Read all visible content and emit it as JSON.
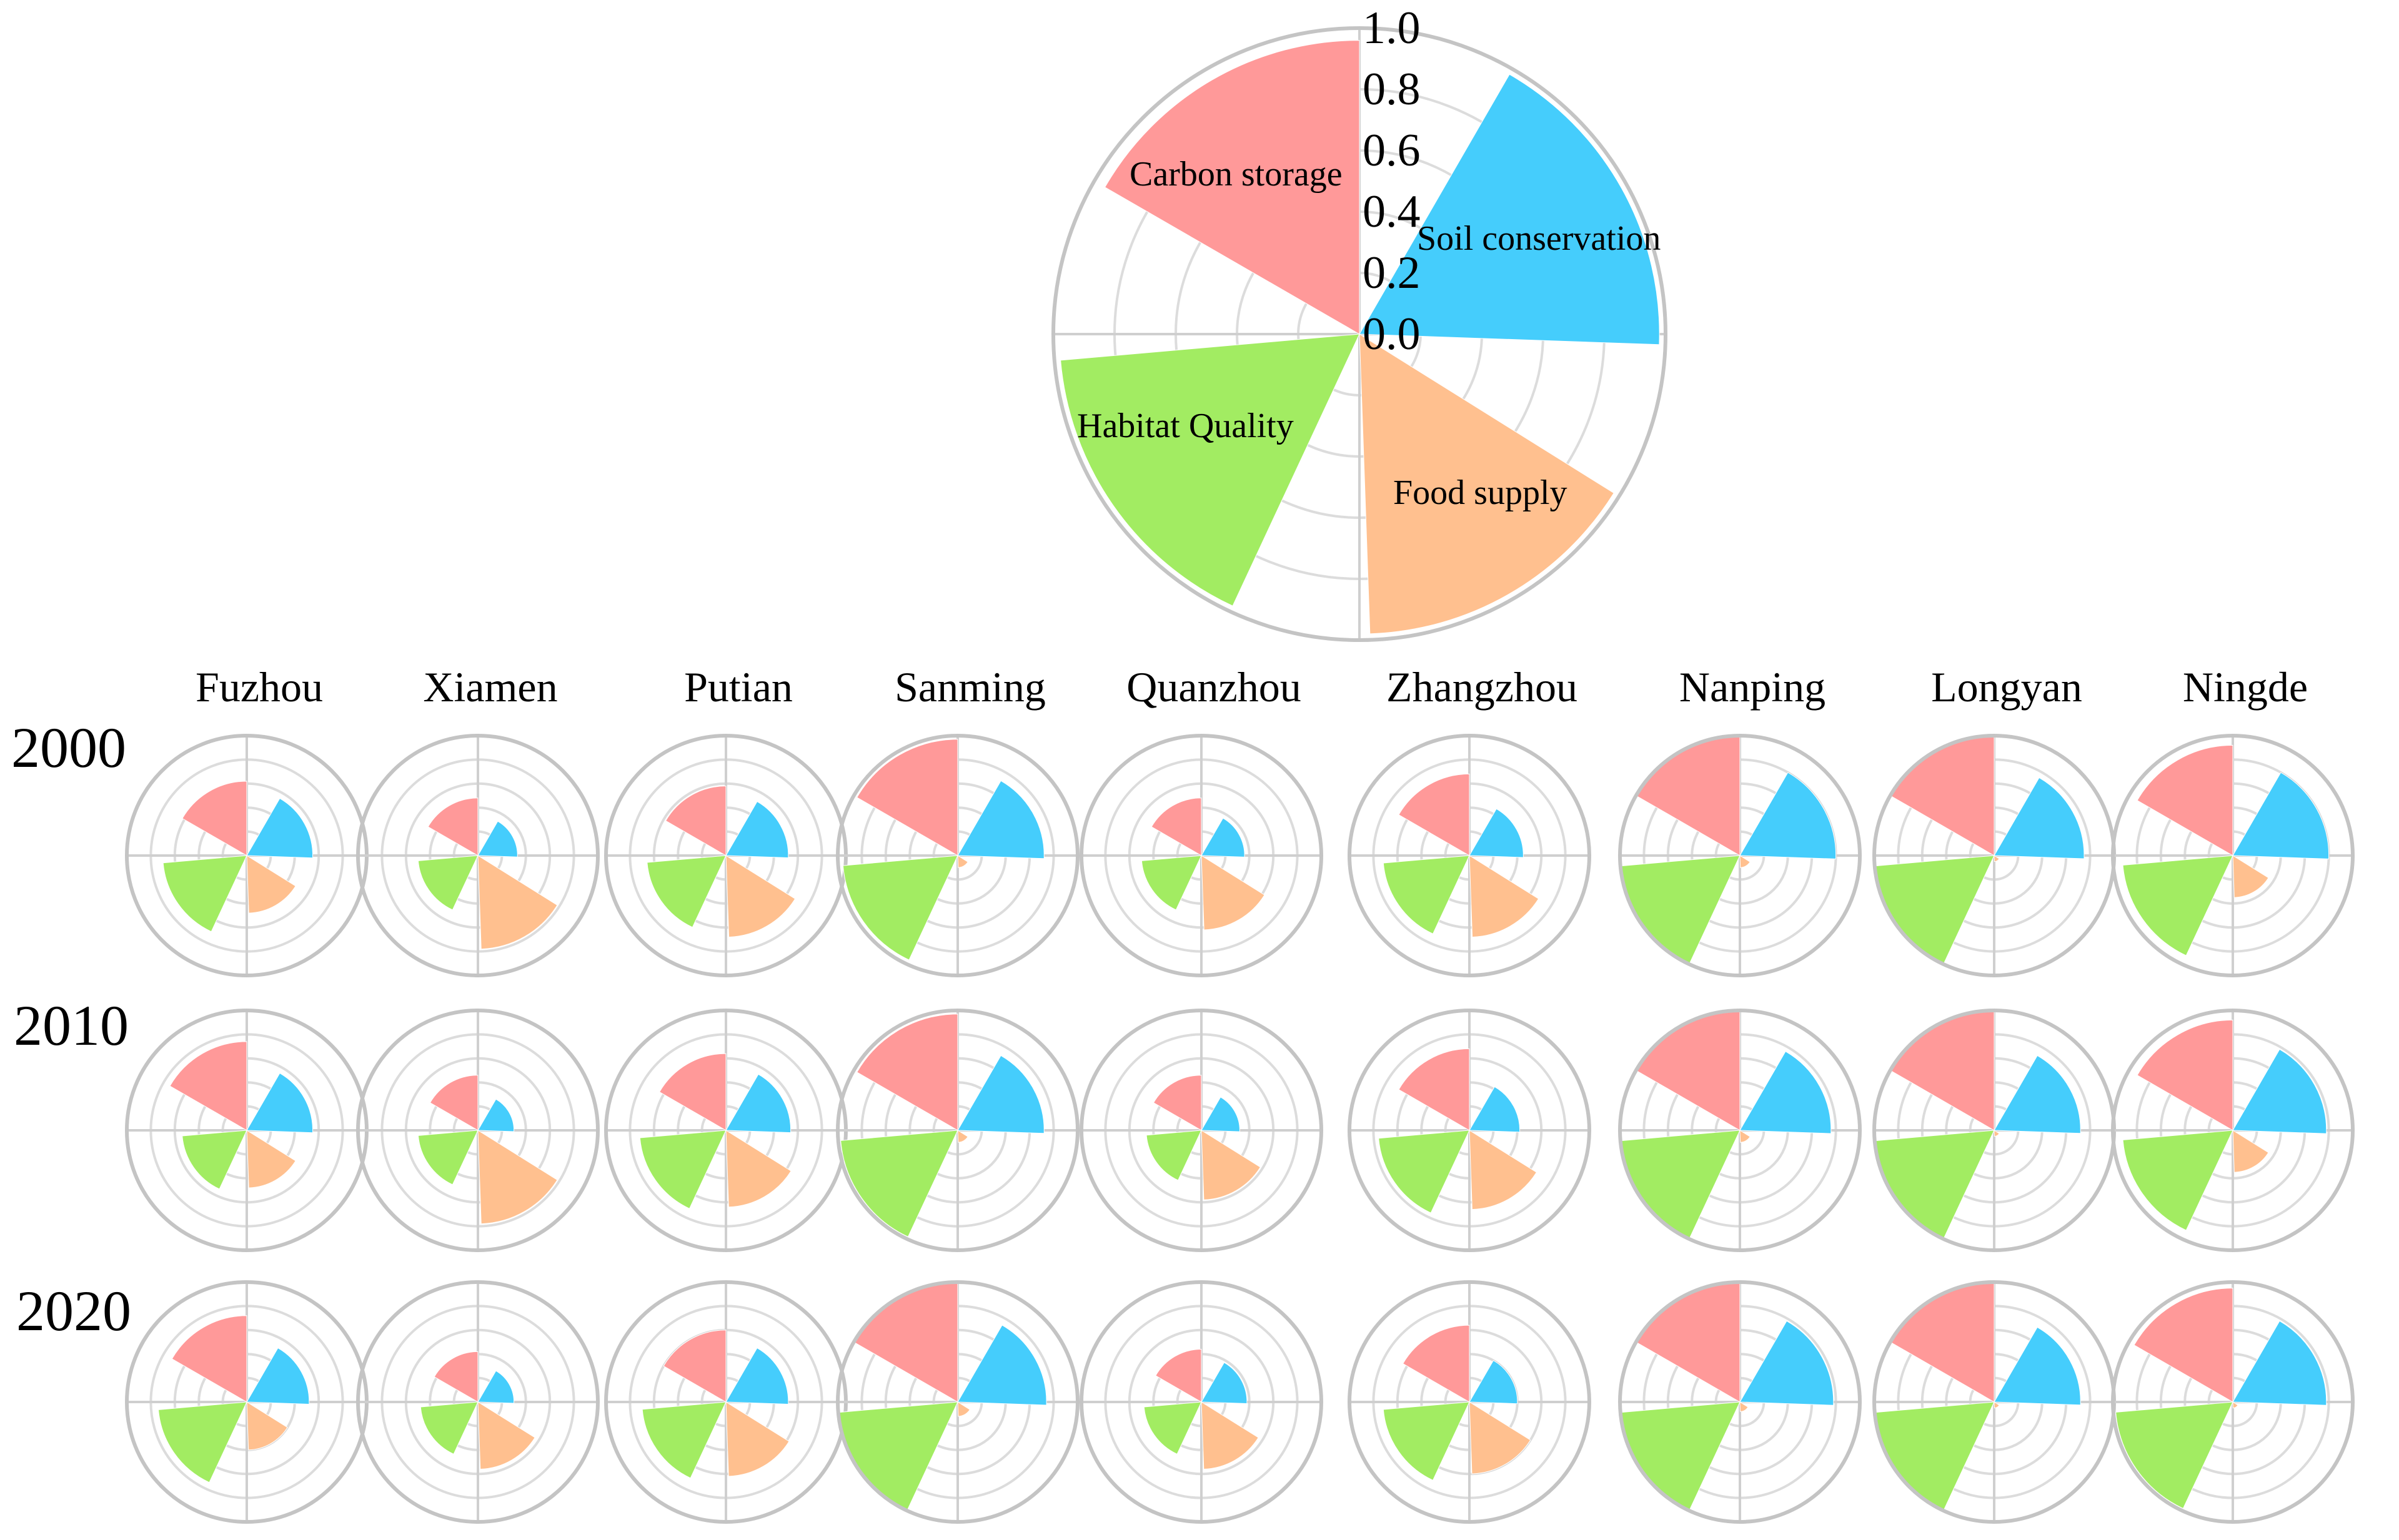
{
  "chart_data": {
    "type": "polar-bar",
    "colors": {
      "carbon_storage": "#ff9999",
      "soil_conservation": "#45cdfc",
      "food_supply": "#ffc08f",
      "habitat_quality": "#a2ec62"
    },
    "legend": {
      "type": "polar-bar",
      "categories": [
        "Carbon storage",
        "Soil conservation",
        "Food supply",
        "Habitat Quality"
      ],
      "values": [
        0.96,
        0.98,
        0.98,
        0.98
      ],
      "rlim": [
        0,
        1.0
      ],
      "r_ticks": [
        "0.0",
        "0.2",
        "0.4",
        "0.6",
        "0.8",
        "1.0"
      ]
    },
    "cities": [
      "Fuzhou",
      "Xiamen",
      "Putian",
      "Sanming",
      "Quanzhou",
      "Zhangzhou",
      "Nanping",
      "Longyan",
      "Ningde"
    ],
    "years": [
      "2000",
      "2010",
      "2020"
    ],
    "series_order": [
      "Carbon storage",
      "Soil conservation",
      "Food supply",
      "Habitat Quality"
    ],
    "values": {
      "2000": [
        [
          0.62,
          0.55,
          0.48,
          0.7
        ],
        [
          0.48,
          0.33,
          0.78,
          0.5
        ],
        [
          0.58,
          0.52,
          0.68,
          0.66
        ],
        [
          0.97,
          0.72,
          0.1,
          0.96
        ],
        [
          0.48,
          0.36,
          0.62,
          0.5
        ],
        [
          0.68,
          0.45,
          0.68,
          0.72
        ],
        [
          1.0,
          0.8,
          0.1,
          1.0
        ],
        [
          1.0,
          0.75,
          0.05,
          1.0
        ],
        [
          0.92,
          0.8,
          0.35,
          0.92
        ]
      ],
      "2010": [
        [
          0.74,
          0.55,
          0.48,
          0.54
        ],
        [
          0.46,
          0.3,
          0.78,
          0.5
        ],
        [
          0.64,
          0.54,
          0.64,
          0.72
        ],
        [
          0.97,
          0.72,
          0.1,
          0.98
        ],
        [
          0.46,
          0.32,
          0.58,
          0.46
        ],
        [
          0.68,
          0.42,
          0.66,
          0.76
        ],
        [
          1.0,
          0.76,
          0.1,
          1.0
        ],
        [
          1.0,
          0.72,
          0.05,
          1.0
        ],
        [
          0.92,
          0.78,
          0.35,
          0.92
        ]
      ],
      "2020": [
        [
          0.72,
          0.52,
          0.4,
          0.74
        ],
        [
          0.42,
          0.3,
          0.56,
          0.48
        ],
        [
          0.6,
          0.52,
          0.62,
          0.7
        ],
        [
          1.0,
          0.74,
          0.12,
          1.0
        ],
        [
          0.44,
          0.38,
          0.56,
          0.48
        ],
        [
          0.64,
          0.4,
          0.6,
          0.72
        ],
        [
          1.0,
          0.78,
          0.08,
          1.0
        ],
        [
          1.0,
          0.72,
          0.05,
          1.0
        ],
        [
          0.95,
          0.78,
          0.05,
          0.98
        ]
      ]
    }
  }
}
